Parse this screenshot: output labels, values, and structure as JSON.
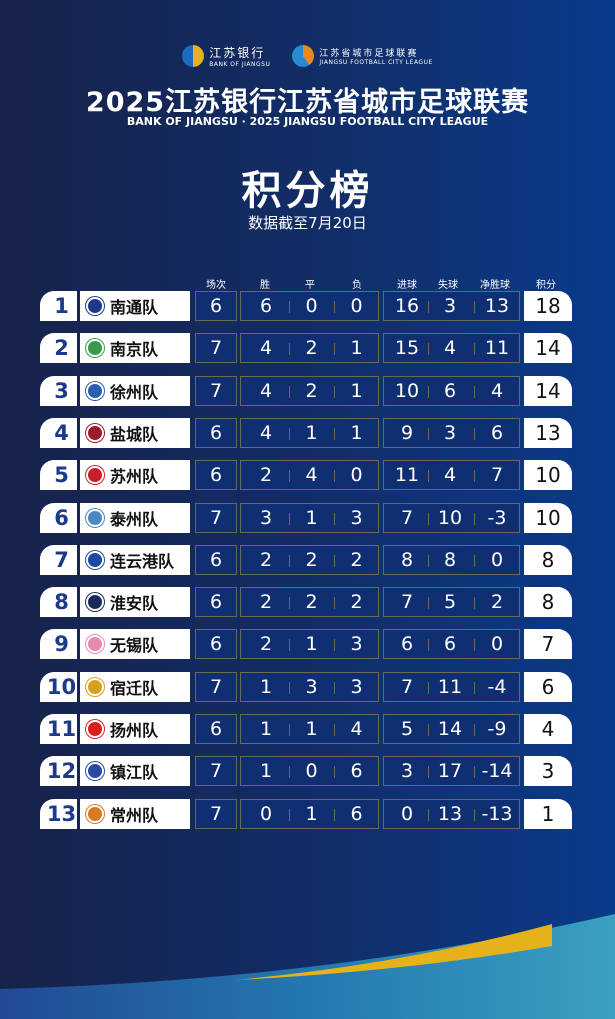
{
  "logos": {
    "bank_name": "江苏银行",
    "bank_en": "BANK OF JIANGSU",
    "league_name": "江苏省城市足球联赛",
    "league_en": "JIANGSU FOOTBALL CITY LEAGUE"
  },
  "header": {
    "title": "2025江苏银行江苏省城市足球联赛",
    "subtitle": "BANK OF JIANGSU · 2025 JIANGSU FOOTBALL CITY LEAGUE",
    "board_title": "积分榜",
    "date": "数据截至7月20日"
  },
  "columns": [
    "场次",
    "胜",
    "平",
    "负",
    "进球",
    "失球",
    "净胜球",
    "积分"
  ],
  "colors": {
    "accent": "#e6b21c",
    "background": "#122d66"
  },
  "rows": [
    {
      "rank": "1",
      "team": "南通队",
      "badge": "#1d3a8a",
      "p": "6",
      "w": "6",
      "d": "0",
      "l": "0",
      "gf": "16",
      "ga": "3",
      "gd": "13",
      "pts": "18"
    },
    {
      "rank": "2",
      "team": "南京队",
      "badge": "#3a9a4a",
      "p": "7",
      "w": "4",
      "d": "2",
      "l": "1",
      "gf": "15",
      "ga": "4",
      "gd": "11",
      "pts": "14"
    },
    {
      "rank": "3",
      "team": "徐州队",
      "badge": "#2a5fb0",
      "p": "7",
      "w": "4",
      "d": "2",
      "l": "1",
      "gf": "10",
      "ga": "6",
      "gd": "4",
      "pts": "14"
    },
    {
      "rank": "4",
      "team": "盐城队",
      "badge": "#9a1d2a",
      "p": "6",
      "w": "4",
      "d": "1",
      "l": "1",
      "gf": "9",
      "ga": "3",
      "gd": "6",
      "pts": "13"
    },
    {
      "rank": "5",
      "team": "苏州队",
      "badge": "#c8202a",
      "p": "6",
      "w": "2",
      "d": "4",
      "l": "0",
      "gf": "11",
      "ga": "4",
      "gd": "7",
      "pts": "10"
    },
    {
      "rank": "6",
      "team": "泰州队",
      "badge": "#4a8ac0",
      "p": "7",
      "w": "3",
      "d": "1",
      "l": "3",
      "gf": "7",
      "ga": "10",
      "gd": "-3",
      "pts": "10"
    },
    {
      "rank": "7",
      "team": "连云港队",
      "badge": "#1d4aa0",
      "p": "6",
      "w": "2",
      "d": "2",
      "l": "2",
      "gf": "8",
      "ga": "8",
      "gd": "0",
      "pts": "8"
    },
    {
      "rank": "8",
      "team": "淮安队",
      "badge": "#1a2a5a",
      "p": "6",
      "w": "2",
      "d": "2",
      "l": "2",
      "gf": "7",
      "ga": "5",
      "gd": "2",
      "pts": "8"
    },
    {
      "rank": "9",
      "team": "无锡队",
      "badge": "#e88ab0",
      "p": "6",
      "w": "2",
      "d": "1",
      "l": "3",
      "gf": "6",
      "ga": "6",
      "gd": "0",
      "pts": "7"
    },
    {
      "rank": "10",
      "team": "宿迁队",
      "badge": "#d8a020",
      "p": "7",
      "w": "1",
      "d": "3",
      "l": "3",
      "gf": "7",
      "ga": "11",
      "gd": "-4",
      "pts": "6"
    },
    {
      "rank": "11",
      "team": "扬州队",
      "badge": "#d82020",
      "p": "6",
      "w": "1",
      "d": "1",
      "l": "4",
      "gf": "5",
      "ga": "14",
      "gd": "-9",
      "pts": "4"
    },
    {
      "rank": "12",
      "team": "镇江队",
      "badge": "#2a4aa0",
      "p": "7",
      "w": "1",
      "d": "0",
      "l": "6",
      "gf": "3",
      "ga": "17",
      "gd": "-14",
      "pts": "3"
    },
    {
      "rank": "13",
      "team": "常州队",
      "badge": "#d87a20",
      "p": "7",
      "w": "0",
      "d": "1",
      "l": "6",
      "gf": "0",
      "ga": "13",
      "gd": "-13",
      "pts": "1"
    }
  ]
}
